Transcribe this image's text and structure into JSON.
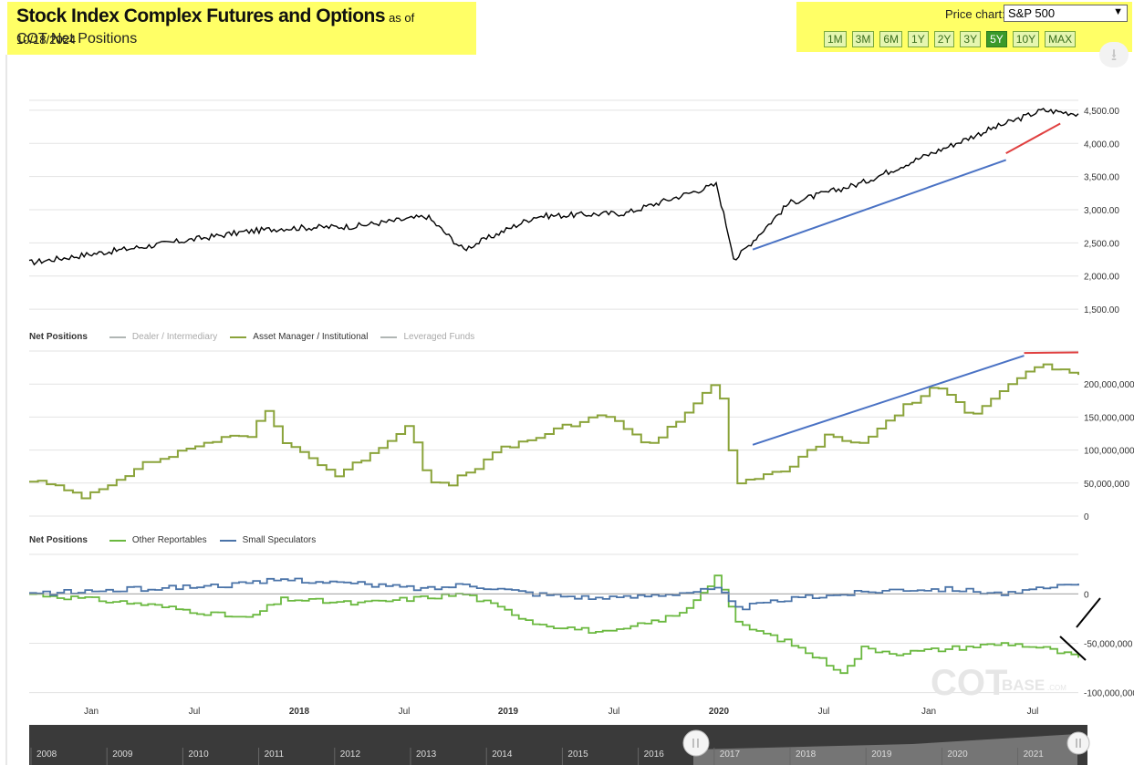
{
  "header": {
    "title": "Stock Index Complex Futures and Options",
    "asof": "as of 10/18/2024",
    "subtitle": "COT Net Positions"
  },
  "price_chart": {
    "label": "Price chart:",
    "selected": "S&P 500",
    "ranges": [
      "1M",
      "3M",
      "6M",
      "1Y",
      "2Y",
      "3Y",
      "5Y",
      "10Y",
      "MAX"
    ],
    "active_range": "5Y"
  },
  "download_icon": "download-icon",
  "legend1": {
    "title": "Net Positions",
    "items": [
      {
        "name": "Dealer / Intermediary",
        "color": "#b0b6b4",
        "visible": false
      },
      {
        "name": "Asset Manager / Institutional",
        "color": "#8aa33a",
        "visible": true
      },
      {
        "name": "Leveraged Funds",
        "color": "#b0b6b4",
        "visible": false
      }
    ]
  },
  "legend2": {
    "title": "Net Positions",
    "items": [
      {
        "name": "Other Reportables",
        "color": "#6ab83f"
      },
      {
        "name": "Small Speculators",
        "color": "#4a73a8"
      }
    ]
  },
  "watermark": {
    "main": "COT",
    "sub": "BASE",
    "suffix": ".COM"
  },
  "colors": {
    "highlight": "#ffff66",
    "trend_blue": "#4a72c4",
    "trend_red": "#e04040",
    "price": "#000000"
  },
  "chart_data": [
    {
      "type": "line",
      "series": [
        {
          "name": "S&P 500",
          "x": [
            "2016-12",
            "2017-06",
            "2017-12",
            "2018-02",
            "2018-06",
            "2018-10",
            "2018-12",
            "2019-04",
            "2019-09",
            "2020-02",
            "2020-03",
            "2020-06",
            "2020-10",
            "2021-01",
            "2021-05",
            "2021-08",
            "2021-10"
          ],
          "values": [
            2200,
            2430,
            2670,
            2720,
            2750,
            2900,
            2400,
            2900,
            2950,
            3380,
            2240,
            3100,
            3400,
            3750,
            4200,
            4500,
            4450
          ]
        }
      ],
      "y_ticks": [
        "1,500.00",
        "2,000.00",
        "2,500.00",
        "3,000.00",
        "3,500.00",
        "4,000.00",
        "4,500.00"
      ],
      "ylim": [
        1350,
        4650
      ]
    },
    {
      "type": "line",
      "series": [
        {
          "name": "Asset Manager / Institutional",
          "x": [
            "2016-12",
            "2017-03",
            "2017-06",
            "2017-10",
            "2017-12",
            "2018-01",
            "2018-02",
            "2018-05",
            "2018-09",
            "2018-10",
            "2018-11",
            "2019-02",
            "2019-05",
            "2019-08",
            "2019-10",
            "2019-12",
            "2020-02",
            "2020-03",
            "2020-06",
            "2020-08",
            "2020-10",
            "2020-12",
            "2021-02",
            "2021-04",
            "2021-06",
            "2021-08",
            "2021-10"
          ],
          "values": [
            55000000,
            30000000,
            75000000,
            115000000,
            120000000,
            160000000,
            115000000,
            60000000,
            140000000,
            50000000,
            45000000,
            100000000,
            130000000,
            155000000,
            105000000,
            150000000,
            210000000,
            45000000,
            75000000,
            120000000,
            110000000,
            160000000,
            195000000,
            155000000,
            200000000,
            230000000,
            210000000
          ]
        }
      ],
      "y_ticks": [
        "0",
        "50,000,000",
        "100,000,000",
        "150,000,000",
        "200,000,000"
      ],
      "ylim": [
        0,
        250000000
      ]
    },
    {
      "type": "line",
      "series": [
        {
          "name": "Other Reportables",
          "x": [
            "2016-12",
            "2017-06",
            "2017-12",
            "2018-02",
            "2018-06",
            "2018-09",
            "2018-12",
            "2019-04",
            "2019-08",
            "2019-12",
            "2020-02",
            "2020-03",
            "2020-06",
            "2020-09",
            "2020-10",
            "2020-12",
            "2021-03",
            "2021-06",
            "2021-08",
            "2021-10"
          ],
          "values": [
            0,
            -10000000,
            -25000000,
            -5000000,
            -10000000,
            -5000000,
            0,
            -30000000,
            -40000000,
            -20000000,
            20000000,
            -30000000,
            -50000000,
            -80000000,
            -55000000,
            -60000000,
            -55000000,
            -50000000,
            -55000000,
            -65000000
          ]
        },
        {
          "name": "Small Speculators",
          "x": [
            "2016-12",
            "2017-06",
            "2017-12",
            "2018-02",
            "2018-06",
            "2018-10",
            "2018-12",
            "2019-04",
            "2019-08",
            "2020-02",
            "2020-03",
            "2020-06",
            "2020-09",
            "2020-12",
            "2021-03",
            "2021-06",
            "2021-10"
          ],
          "values": [
            0,
            5000000,
            10000000,
            15000000,
            10000000,
            5000000,
            10000000,
            0,
            -5000000,
            5000000,
            -15000000,
            -5000000,
            0,
            5000000,
            5000000,
            0,
            10000000
          ]
        }
      ],
      "y_ticks": [
        "-100,000,000",
        "-50,000,000",
        "0"
      ],
      "ylim": [
        -105000000,
        40000000
      ]
    }
  ],
  "x_axis": {
    "labels": [
      {
        "text": "Jan",
        "bold": false
      },
      {
        "text": "Jul",
        "bold": false
      },
      {
        "text": "2018",
        "bold": true
      },
      {
        "text": "Jul",
        "bold": false
      },
      {
        "text": "2019",
        "bold": true
      },
      {
        "text": "Jul",
        "bold": false
      },
      {
        "text": "2020",
        "bold": true
      },
      {
        "text": "Jul",
        "bold": false
      },
      {
        "text": "Jan",
        "bold": false
      },
      {
        "text": "Jul",
        "bold": false
      }
    ]
  },
  "navigator": {
    "years": [
      "2008",
      "2009",
      "2010",
      "2011",
      "2012",
      "2013",
      "2014",
      "2015",
      "2016",
      "2017",
      "2018",
      "2019",
      "2020",
      "2021"
    ]
  }
}
